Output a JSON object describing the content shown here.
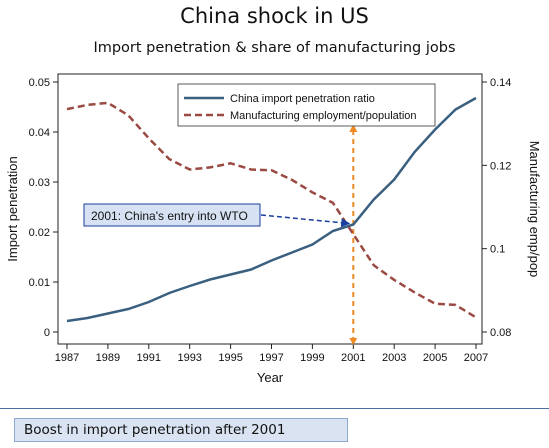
{
  "slide": {
    "title": "China shock in US",
    "subtitle": "Import penetration & share of manufacturing jobs",
    "footer": "Boost in import penetration after 2001"
  },
  "chart_data": {
    "type": "line",
    "xlabel": "Year",
    "ylabel_left": "Import penetration",
    "ylabel_right": "Manufacturing emp/pop",
    "xlim": [
      1987,
      2007
    ],
    "ylim_left": [
      0,
      0.05
    ],
    "ylim_right": [
      0.08,
      0.14
    ],
    "x_ticks": [
      1987,
      1989,
      1991,
      1993,
      1995,
      1997,
      1999,
      2001,
      2003,
      2005,
      2007
    ],
    "y_ticks_left": [
      {
        "value": 0,
        "label": "0"
      },
      {
        "value": 0.01,
        "label": "0.01"
      },
      {
        "value": 0.02,
        "label": "0.02"
      },
      {
        "value": 0.03,
        "label": "0.03"
      },
      {
        "value": 0.04,
        "label": "0.04"
      },
      {
        "value": 0.05,
        "label": "0.05"
      }
    ],
    "y_ticks_right": [
      {
        "value": 0.08,
        "label": "0.08"
      },
      {
        "value": 0.1,
        "label": "0.1"
      },
      {
        "value": 0.12,
        "label": "0.12"
      },
      {
        "value": 0.14,
        "label": "0.14"
      }
    ],
    "x": [
      1987,
      1988,
      1989,
      1990,
      1991,
      1992,
      1993,
      1994,
      1995,
      1996,
      1997,
      1998,
      1999,
      2000,
      2001,
      2002,
      2003,
      2004,
      2005,
      2006,
      2007
    ],
    "series": [
      {
        "name": "China import penetration ratio",
        "axis": "left",
        "color": "#3a5f7f",
        "style": "solid",
        "values": [
          0.0022,
          0.0028,
          0.0037,
          0.0046,
          0.006,
          0.0078,
          0.0092,
          0.0105,
          0.0115,
          0.0125,
          0.0143,
          0.0159,
          0.0175,
          0.0202,
          0.0215,
          0.0265,
          0.0305,
          0.036,
          0.0405,
          0.0445,
          0.0468
        ]
      },
      {
        "name": "Manufacturing employment/population",
        "axis": "right",
        "color": "#9a4a42",
        "style": "dashed",
        "values": [
          0.1335,
          0.1345,
          0.135,
          0.132,
          0.1265,
          0.1215,
          0.119,
          0.1195,
          0.1205,
          0.119,
          0.1188,
          0.1165,
          0.1135,
          0.111,
          0.1035,
          0.096,
          0.0925,
          0.0895,
          0.0868,
          0.0865,
          0.0835
        ]
      }
    ],
    "legend_position": "top-right",
    "annotations": [
      {
        "text": "2001: China's entry into WTO",
        "x": 2001,
        "color": "#1a3fa0"
      }
    ],
    "vline": {
      "x": 2001,
      "color": "#f08a24",
      "style": "dashed"
    },
    "grid": false
  }
}
